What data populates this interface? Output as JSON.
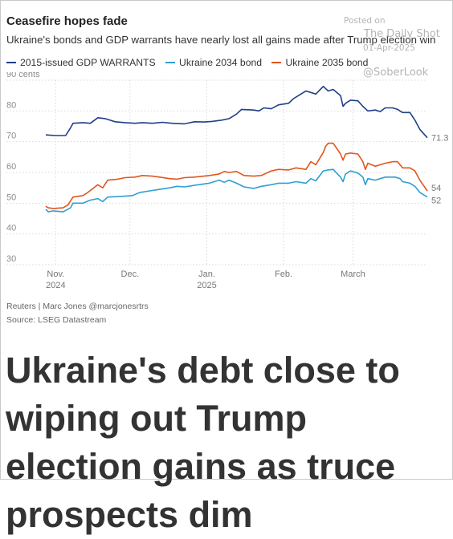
{
  "watermark": {
    "posted": "Posted on",
    "site": "The Daily Shot",
    "date": "01-Apr-2025",
    "handle": "@SoberLook"
  },
  "credit": "Reuters | Marc Jones @marcjonesrtrs",
  "source": "Source: LSEG Datastream",
  "headline": "Ukraine's debt close to wiping out Trump election gains as truce prospects dim",
  "chart_data": {
    "type": "line",
    "title": "Ceasefire hopes fade",
    "subtitle": "Ukraine's bonds and GDP warrants have nearly lost all gains made after Trump election win",
    "ylabel": "",
    "xlabel": "",
    "y_unit": "cents",
    "ylim": [
      30,
      90
    ],
    "yticks": [
      30,
      40,
      50,
      60,
      70,
      80,
      90
    ],
    "xlim": [
      "2024-10-28",
      "2025-03-31"
    ],
    "xticks": [
      {
        "date": "2024-11-01",
        "label": "Nov.",
        "sublabel": "2024"
      },
      {
        "date": "2024-12-01",
        "label": "Dec.",
        "sublabel": ""
      },
      {
        "date": "2025-01-01",
        "label": "Jan.",
        "sublabel": "2025"
      },
      {
        "date": "2025-02-01",
        "label": "Feb.",
        "sublabel": ""
      },
      {
        "date": "2025-03-01",
        "label": "March",
        "sublabel": ""
      }
    ],
    "grid": true,
    "legend_position": "top-left",
    "series": [
      {
        "name": "2015-issued GDP WARRANTS",
        "color": "#1f3f86",
        "end_label": "71.3",
        "points": [
          [
            "2024-10-28",
            72.2
          ],
          [
            "2024-11-01",
            72.0
          ],
          [
            "2024-11-05",
            72.0
          ],
          [
            "2024-11-07",
            74.5
          ],
          [
            "2024-11-08",
            76.0
          ],
          [
            "2024-11-12",
            76.2
          ],
          [
            "2024-11-15",
            76.0
          ],
          [
            "2024-11-18",
            77.8
          ],
          [
            "2024-11-21",
            77.5
          ],
          [
            "2024-11-25",
            76.5
          ],
          [
            "2024-11-29",
            76.2
          ],
          [
            "2024-12-03",
            76.0
          ],
          [
            "2024-12-06",
            76.2
          ],
          [
            "2024-12-10",
            76.0
          ],
          [
            "2024-12-14",
            76.3
          ],
          [
            "2024-12-18",
            76.0
          ],
          [
            "2024-12-23",
            75.8
          ],
          [
            "2024-12-27",
            76.5
          ],
          [
            "2024-12-31",
            76.4
          ],
          [
            "2025-01-03",
            76.6
          ],
          [
            "2025-01-07",
            77.0
          ],
          [
            "2025-01-10",
            77.5
          ],
          [
            "2025-01-13",
            79.0
          ],
          [
            "2025-01-15",
            80.5
          ],
          [
            "2025-01-20",
            80.3
          ],
          [
            "2025-01-22",
            80.0
          ],
          [
            "2025-01-24",
            81.0
          ],
          [
            "2025-01-27",
            80.7
          ],
          [
            "2025-01-30",
            82.0
          ],
          [
            "2025-02-03",
            82.5
          ],
          [
            "2025-02-05",
            84.0
          ],
          [
            "2025-02-07",
            85.0
          ],
          [
            "2025-02-10",
            86.5
          ],
          [
            "2025-02-12",
            86.0
          ],
          [
            "2025-02-14",
            85.5
          ],
          [
            "2025-02-17",
            88.0
          ],
          [
            "2025-02-19",
            86.5
          ],
          [
            "2025-02-21",
            87.0
          ],
          [
            "2025-02-24",
            85.0
          ],
          [
            "2025-02-25",
            81.5
          ],
          [
            "2025-02-26",
            82.5
          ],
          [
            "2025-02-28",
            83.5
          ],
          [
            "2025-03-03",
            83.3
          ],
          [
            "2025-03-05",
            81.5
          ],
          [
            "2025-03-07",
            80.0
          ],
          [
            "2025-03-10",
            80.3
          ],
          [
            "2025-03-12",
            79.8
          ],
          [
            "2025-03-14",
            81.0
          ],
          [
            "2025-03-17",
            81.0
          ],
          [
            "2025-03-19",
            80.5
          ],
          [
            "2025-03-21",
            79.5
          ],
          [
            "2025-03-24",
            79.5
          ],
          [
            "2025-03-26",
            77.0
          ],
          [
            "2025-03-28",
            74.0
          ],
          [
            "2025-03-31",
            71.3
          ]
        ]
      },
      {
        "name": "Ukraine 2034 bond",
        "color": "#2f9fd1",
        "end_label": "52",
        "points": [
          [
            "2024-10-28",
            48.0
          ],
          [
            "2024-10-29",
            47.2
          ],
          [
            "2024-10-31",
            47.5
          ],
          [
            "2024-11-04",
            47.2
          ],
          [
            "2024-11-07",
            48.5
          ],
          [
            "2024-11-08",
            50.0
          ],
          [
            "2024-11-12",
            50.0
          ],
          [
            "2024-11-15",
            51.0
          ],
          [
            "2024-11-18",
            51.5
          ],
          [
            "2024-11-20",
            50.5
          ],
          [
            "2024-11-22",
            52.0
          ],
          [
            "2024-11-27",
            52.2
          ],
          [
            "2024-12-02",
            52.5
          ],
          [
            "2024-12-05",
            53.5
          ],
          [
            "2024-12-09",
            54.0
          ],
          [
            "2024-12-13",
            54.5
          ],
          [
            "2024-12-17",
            55.0
          ],
          [
            "2024-12-20",
            55.5
          ],
          [
            "2024-12-23",
            55.3
          ],
          [
            "2024-12-27",
            55.8
          ],
          [
            "2025-01-02",
            56.5
          ],
          [
            "2025-01-06",
            57.5
          ],
          [
            "2025-01-08",
            56.8
          ],
          [
            "2025-01-10",
            57.5
          ],
          [
            "2025-01-13",
            56.5
          ],
          [
            "2025-01-16",
            55.3
          ],
          [
            "2025-01-20",
            54.8
          ],
          [
            "2025-01-23",
            55.5
          ],
          [
            "2025-01-27",
            56.0
          ],
          [
            "2025-01-30",
            56.5
          ],
          [
            "2025-02-03",
            56.5
          ],
          [
            "2025-02-06",
            57.0
          ],
          [
            "2025-02-10",
            56.5
          ],
          [
            "2025-02-12",
            58.0
          ],
          [
            "2025-02-14",
            57.3
          ],
          [
            "2025-02-17",
            60.5
          ],
          [
            "2025-02-19",
            60.8
          ],
          [
            "2025-02-21",
            61.0
          ],
          [
            "2025-02-24",
            58.5
          ],
          [
            "2025-02-25",
            57.0
          ],
          [
            "2025-02-26",
            59.5
          ],
          [
            "2025-02-28",
            60.5
          ],
          [
            "2025-03-03",
            59.8
          ],
          [
            "2025-03-05",
            58.5
          ],
          [
            "2025-03-06",
            56.0
          ],
          [
            "2025-03-07",
            58.0
          ],
          [
            "2025-03-10",
            57.5
          ],
          [
            "2025-03-12",
            58.0
          ],
          [
            "2025-03-14",
            58.5
          ],
          [
            "2025-03-18",
            58.5
          ],
          [
            "2025-03-20",
            58.0
          ],
          [
            "2025-03-21",
            57.0
          ],
          [
            "2025-03-24",
            56.5
          ],
          [
            "2025-03-26",
            55.5
          ],
          [
            "2025-03-28",
            53.5
          ],
          [
            "2025-03-31",
            52.0
          ]
        ]
      },
      {
        "name": "Ukraine 2035 bond",
        "color": "#e0561c",
        "end_label": "54",
        "points": [
          [
            "2024-10-28",
            49.0
          ],
          [
            "2024-10-29",
            48.5
          ],
          [
            "2024-10-31",
            48.3
          ],
          [
            "2024-11-04",
            48.5
          ],
          [
            "2024-11-06",
            49.5
          ],
          [
            "2024-11-08",
            52.0
          ],
          [
            "2024-11-12",
            52.5
          ],
          [
            "2024-11-14",
            53.5
          ],
          [
            "2024-11-18",
            56.0
          ],
          [
            "2024-11-20",
            55.0
          ],
          [
            "2024-11-22",
            57.5
          ],
          [
            "2024-11-26",
            57.8
          ],
          [
            "2024-11-29",
            58.3
          ],
          [
            "2024-12-03",
            58.5
          ],
          [
            "2024-12-06",
            59.0
          ],
          [
            "2024-12-10",
            58.8
          ],
          [
            "2024-12-13",
            58.5
          ],
          [
            "2024-12-17",
            58.0
          ],
          [
            "2024-12-20",
            57.8
          ],
          [
            "2024-12-23",
            58.3
          ],
          [
            "2024-12-27",
            58.5
          ],
          [
            "2025-01-02",
            59.0
          ],
          [
            "2025-01-06",
            59.5
          ],
          [
            "2025-01-08",
            60.3
          ],
          [
            "2025-01-10",
            60.0
          ],
          [
            "2025-01-13",
            60.3
          ],
          [
            "2025-01-16",
            59.0
          ],
          [
            "2025-01-20",
            58.8
          ],
          [
            "2025-01-23",
            59.0
          ],
          [
            "2025-01-27",
            60.5
          ],
          [
            "2025-01-30",
            61.0
          ],
          [
            "2025-02-03",
            60.8
          ],
          [
            "2025-02-06",
            61.5
          ],
          [
            "2025-02-10",
            61.0
          ],
          [
            "2025-02-12",
            63.5
          ],
          [
            "2025-02-14",
            62.5
          ],
          [
            "2025-02-17",
            66.5
          ],
          [
            "2025-02-18",
            68.5
          ],
          [
            "2025-02-19",
            69.5
          ],
          [
            "2025-02-21",
            69.5
          ],
          [
            "2025-02-24",
            66.0
          ],
          [
            "2025-02-25",
            64.0
          ],
          [
            "2025-02-26",
            66.0
          ],
          [
            "2025-02-28",
            66.3
          ],
          [
            "2025-03-03",
            66.0
          ],
          [
            "2025-03-05",
            63.5
          ],
          [
            "2025-03-06",
            61.0
          ],
          [
            "2025-03-07",
            63.0
          ],
          [
            "2025-03-10",
            62.0
          ],
          [
            "2025-03-12",
            62.5
          ],
          [
            "2025-03-14",
            63.0
          ],
          [
            "2025-03-17",
            63.5
          ],
          [
            "2025-03-19",
            63.5
          ],
          [
            "2025-03-21",
            61.5
          ],
          [
            "2025-03-24",
            61.5
          ],
          [
            "2025-03-26",
            60.5
          ],
          [
            "2025-03-28",
            57.5
          ],
          [
            "2025-03-31",
            54.0
          ]
        ]
      }
    ]
  }
}
